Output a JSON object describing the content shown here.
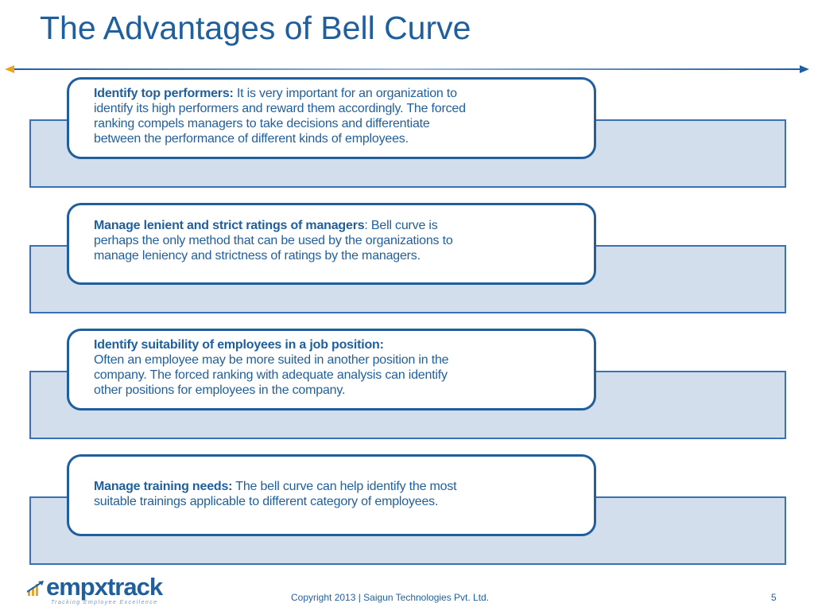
{
  "slide": {
    "title": "The Advantages of Bell Curve"
  },
  "advantages": [
    {
      "heading": "Identify top performers:",
      "lines": [
        " It is very important for an organization to",
        "identify its high performers and reward them accordingly. The forced",
        "ranking compels managers to take decisions and differentiate",
        "between the performance of different kinds of employees."
      ]
    },
    {
      "heading": "Manage lenient and strict ratings of managers",
      "lines": [
        ": Bell curve is",
        "perhaps the only method that can be used by the organizations to",
        "manage leniency and strictness of ratings by the managers."
      ]
    },
    {
      "heading": "Identify suitability of employees in a job position:",
      "lines": [
        "Often an employee may be more suited in another position in the",
        "company. The forced ranking with adequate analysis can identify",
        "other positions for employees in the company."
      ]
    },
    {
      "heading": "Manage training needs:",
      "lines": [
        " The bell curve can help identify the most",
        "suitable trainings applicable to different category of employees."
      ]
    }
  ],
  "footer": {
    "logo_prefix": "empx",
    "logo_x": "",
    "logo_suffix": "track",
    "logo_tagline": "Tracking Employee Excellence",
    "copyright": "Copyright 2013 | Saigun Technologies Pvt. Ltd.",
    "page_number": "5"
  },
  "colors": {
    "title": "#1F5F9E",
    "band_fill": "#D3DEEC",
    "band_border": "#3A70B5",
    "card_border": "#1F5F9E",
    "logo_accent": "#F0A21E"
  }
}
